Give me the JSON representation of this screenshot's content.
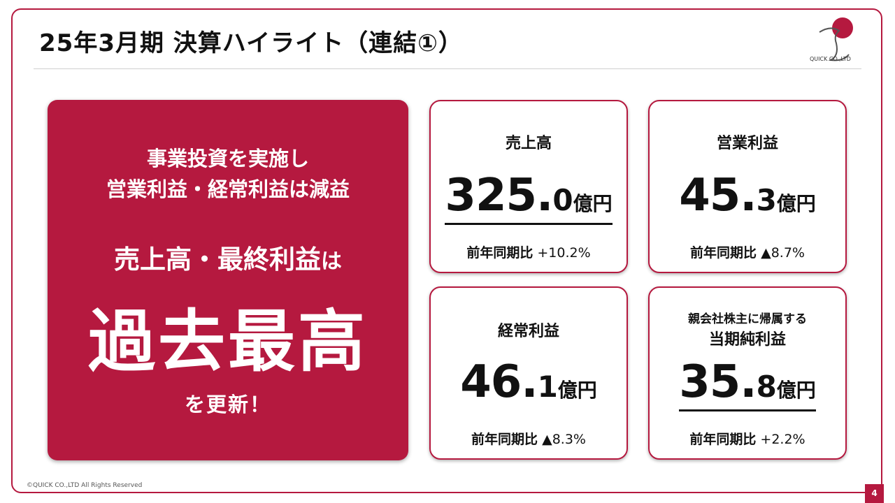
{
  "title": "25年3月期 決算ハイライト（連結①）",
  "logo": {
    "text": "QUICK CO.,LTD"
  },
  "hero": {
    "line1a": "事業投資を実施し",
    "line1b": "営業利益・経常利益は減益",
    "line2": "売上高・最終利益",
    "line2_suffix": "は",
    "line3": "過去最高",
    "line4": "を更新！"
  },
  "metrics": [
    {
      "label": "売上高",
      "int": "325.",
      "dec": "0",
      "unit": "億円",
      "cmp_label": "前年同期比",
      "cmp_value": "+10.2%"
    },
    {
      "label": "営業利益",
      "int": "45.",
      "dec": "3",
      "unit": "億円",
      "cmp_label": "前年同期比",
      "cmp_value": "▲8.7%"
    },
    {
      "label": "経常利益",
      "int": "46.",
      "dec": "1",
      "unit": "億円",
      "cmp_label": "前年同期比",
      "cmp_value": "▲8.3%"
    },
    {
      "label_line1": "親会社株主に帰属する",
      "label_line2": "当期純利益",
      "int": "35.",
      "dec": "8",
      "unit": "億円",
      "cmp_label": "前年同期比",
      "cmp_value": "+2.2%"
    }
  ],
  "footer": {
    "copyright": "©QUICK CO.,LTD All Rights Reserved",
    "page_number": "4"
  },
  "colors": {
    "accent": "#b5193f",
    "text": "#111111",
    "background": "#ffffff"
  }
}
